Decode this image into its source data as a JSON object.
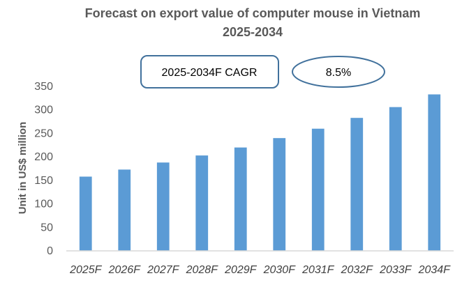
{
  "chart_data": {
    "type": "bar",
    "title": [
      "Forecast on export value of computer mouse in Vietnam",
      "2025-2034"
    ],
    "xlabel": "",
    "ylabel": "Unit in US$ million",
    "categories": [
      "2025F",
      "2026F",
      "2027F",
      "2028F",
      "2029F",
      "2030F",
      "2031F",
      "2032F",
      "2033F",
      "2034F"
    ],
    "values": [
      158,
      173,
      188,
      203,
      220,
      240,
      260,
      283,
      306,
      333
    ],
    "ylim": [
      0,
      350
    ],
    "yticks": [
      0,
      50,
      100,
      150,
      200,
      250,
      300,
      350
    ],
    "grid": false,
    "legend": "none",
    "bar_color": "#5B9BD5",
    "annotations": {
      "cagr_label": "2025-2034F CAGR",
      "cagr_value": "8.5%"
    }
  }
}
